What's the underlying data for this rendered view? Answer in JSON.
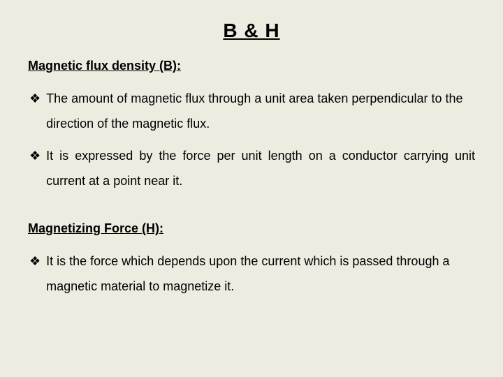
{
  "title": "B & H",
  "section1": {
    "heading": "Magnetic flux density (B):",
    "bullet1": "The amount of magnetic flux through a unit area taken perpendicular to the direction of the magnetic flux.",
    "bullet2": "It is expressed by the force per unit length on a conductor carrying unit current at a point near it."
  },
  "section2": {
    "heading": "Magnetizing Force (H):",
    "bullet1": "It is the force which depends upon the current which is passed through a magnetic material to magnetize it."
  },
  "bullet_glyph": "❖",
  "colors": {
    "background": "#eeece1",
    "text": "#000000"
  },
  "typography": {
    "title_fontsize": 28,
    "heading_fontsize": 18,
    "body_fontsize": 18,
    "font_family": "Arial"
  }
}
